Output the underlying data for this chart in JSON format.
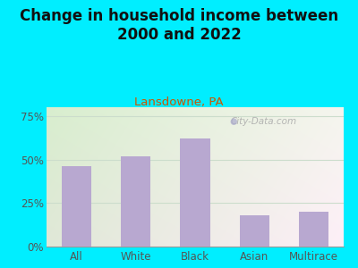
{
  "title": "Change in household income between\n2000 and 2022",
  "subtitle": "Lansdowne, PA",
  "categories": [
    "All",
    "White",
    "Black",
    "Asian",
    "Multirace"
  ],
  "values": [
    46,
    52,
    62,
    18,
    20
  ],
  "bar_color": "#b8a8d0",
  "title_fontsize": 12,
  "subtitle_fontsize": 9.5,
  "subtitle_color": "#cc5500",
  "background_outer": "#00eeff",
  "ylim": [
    0,
    80
  ],
  "yticks": [
    0,
    25,
    50,
    75
  ],
  "ytick_labels": [
    "0%",
    "25%",
    "50%",
    "75%"
  ],
  "watermark": "City-Data.com",
  "watermark_color": "#aaaaaa",
  "grid_color": "#ccddcc",
  "tick_label_fontsize": 8.5,
  "title_color": "#111111"
}
